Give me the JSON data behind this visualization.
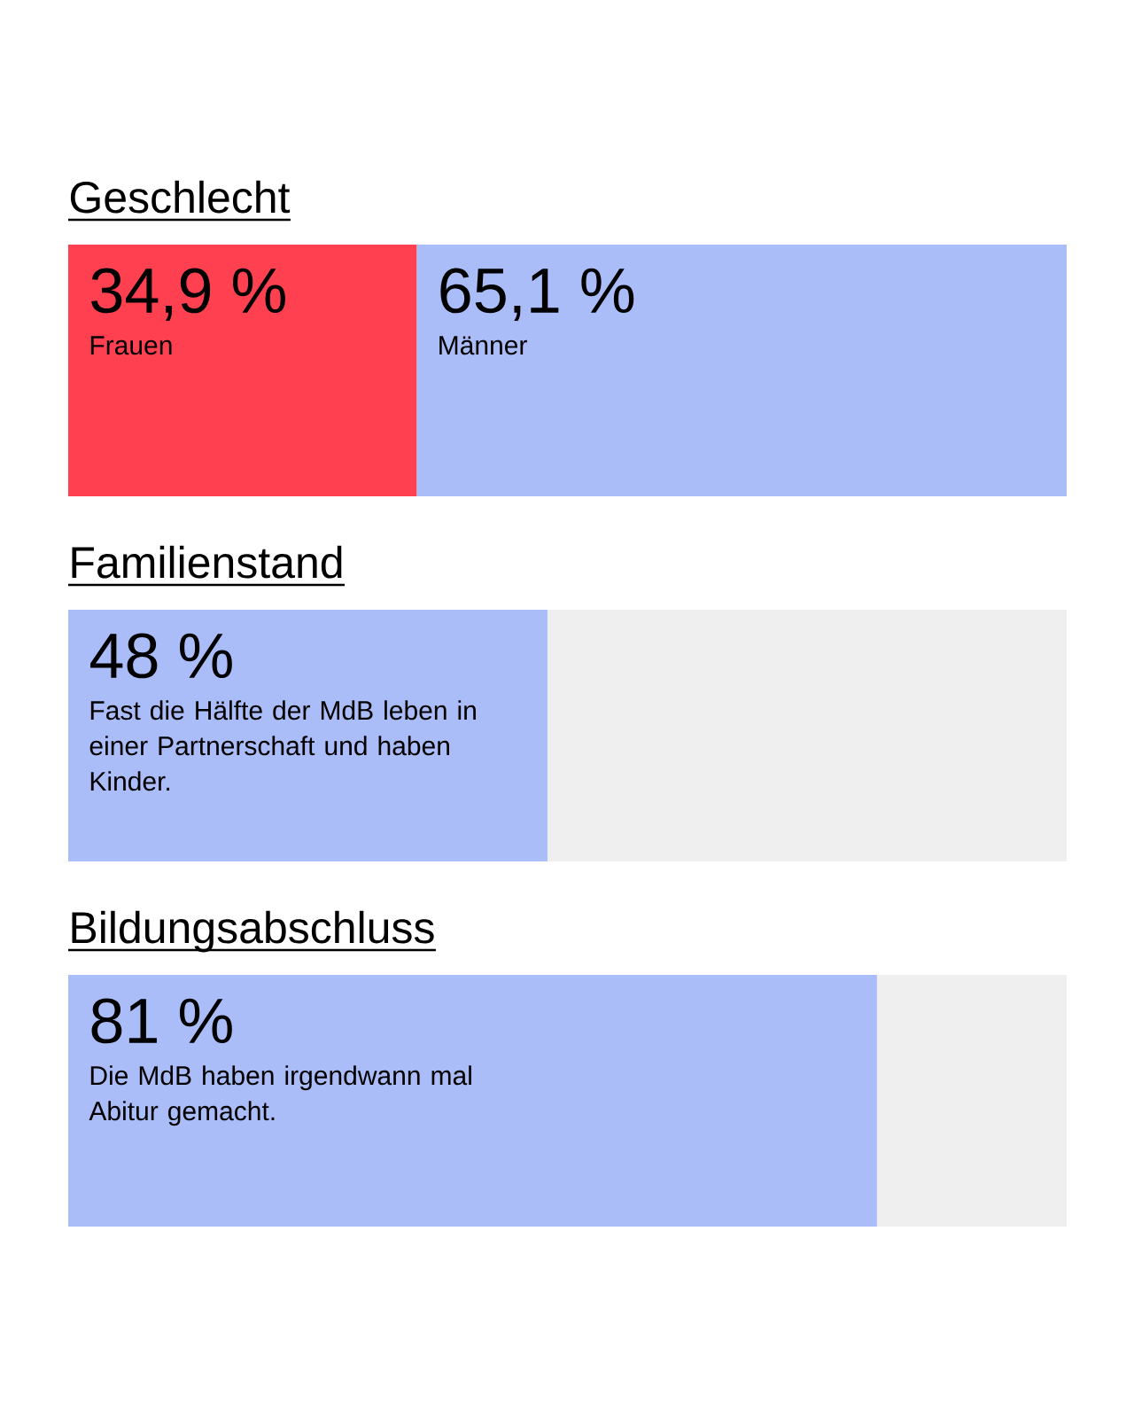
{
  "chart_data": [
    {
      "type": "bar",
      "title": "Geschlecht",
      "orientation": "horizontal",
      "stacked": true,
      "categories": [
        null
      ],
      "series": [
        {
          "name": "Frauen",
          "color": "#ff4050",
          "values": [
            34.9
          ],
          "value_labels": [
            "34,9 %"
          ]
        },
        {
          "name": "Männer",
          "color": "#abbdf9",
          "values": [
            65.1
          ],
          "value_labels": [
            "65,1 %"
          ]
        }
      ]
    },
    {
      "type": "bar",
      "title": "Familienstand",
      "orientation": "horizontal",
      "stacked": true,
      "categories": [
        null
      ],
      "series": [
        {
          "color": "#abbdf9",
          "values": [
            48
          ],
          "value_labels": [
            "48 %"
          ]
        },
        {
          "color": "#efefef",
          "values": [
            52
          ],
          "value_labels": [
            null
          ]
        }
      ],
      "annotations": [
        "Fast die Hälfte der MdB leben in einer Partnerschaft und haben Kinder."
      ]
    },
    {
      "type": "bar",
      "title": "Bildungsabschluss",
      "orientation": "horizontal",
      "stacked": true,
      "categories": [
        null
      ],
      "series": [
        {
          "color": "#abbdf9",
          "values": [
            81
          ],
          "value_labels": [
            "81 %"
          ]
        },
        {
          "color": "#efefef",
          "values": [
            19
          ],
          "value_labels": [
            null
          ]
        }
      ],
      "annotations": [
        "Die MdB haben irgendwann mal Abitur gemacht."
      ]
    }
  ]
}
